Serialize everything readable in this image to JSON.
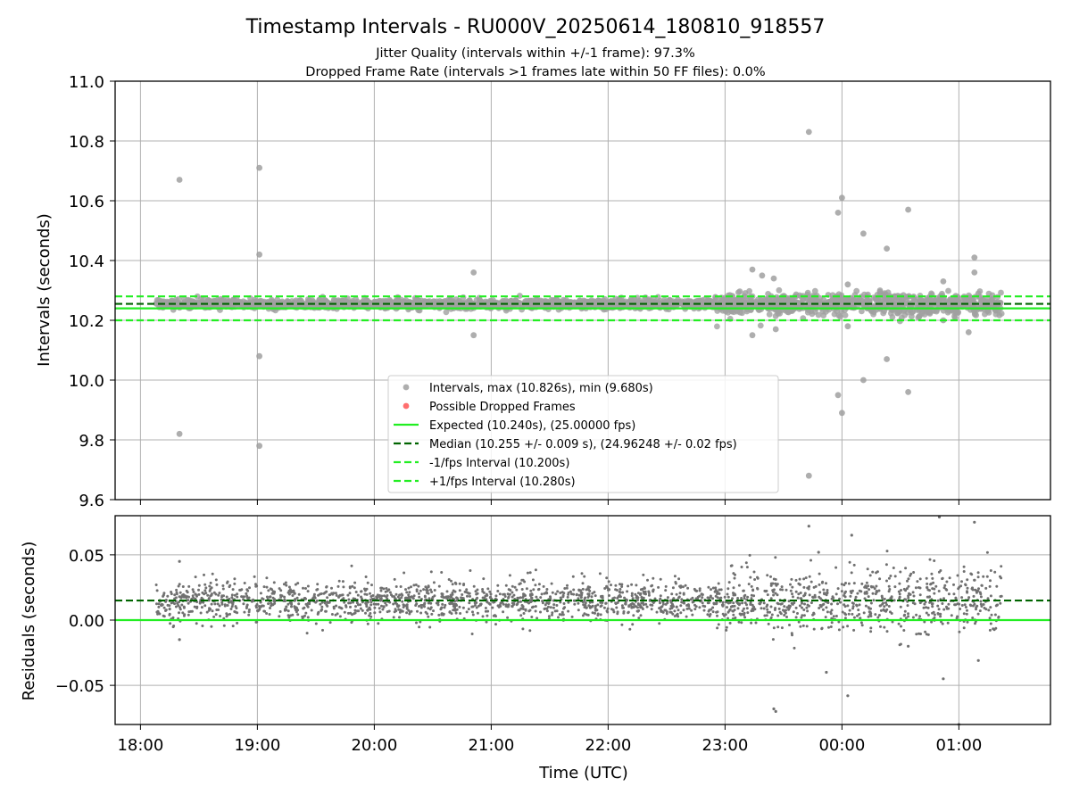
{
  "chart_data": [
    {
      "type": "scatter",
      "title": "Timestamp Intervals - RU000V_20250614_180810_918557",
      "subtitle_lines": [
        "Jitter Quality (intervals within +/-1 frame): 97.3%",
        "Dropped Frame Rate (intervals >1 frames late within 50 FF files): 0.0%"
      ],
      "xlabel": "",
      "ylabel": "Intervals (seconds)",
      "x_range": [
        "2025-06-14T17:47",
        "2025-06-15T01:47"
      ],
      "ylim": [
        9.6,
        11.0
      ],
      "x_ticks": [
        "18:00",
        "19:00",
        "20:00",
        "21:00",
        "22:00",
        "23:00",
        "00:00",
        "01:00"
      ],
      "y_ticks": [
        "9.6",
        "9.8",
        "10.0",
        "10.2",
        "10.4",
        "10.6",
        "10.8",
        "11.0"
      ],
      "grid": true,
      "legend_position": "bottom-center",
      "colors": {
        "points": "#a0a0a0",
        "dropped": "#ff5555",
        "expected": "#22ee22",
        "median": "#006400",
        "bounds": "#22ee22"
      },
      "series": [
        {
          "name": "Intervals, max (10.826s), min (9.680s)",
          "kind": "points",
          "x": [
            "2025-06-14T18:20",
            "2025-06-14T18:20",
            "2025-06-14T19:01",
            "2025-06-14T19:01",
            "2025-06-14T19:01",
            "2025-06-14T19:01",
            "2025-06-14T20:51",
            "2025-06-14T20:51",
            "2025-06-14T23:14",
            "2025-06-14T23:14",
            "2025-06-14T23:19",
            "2025-06-14T23:25",
            "2025-06-14T23:26",
            "2025-06-14T23:43",
            "2025-06-14T23:43",
            "2025-06-14T23:58",
            "2025-06-14T23:58",
            "2025-06-15T00:00",
            "2025-06-15T00:00",
            "2025-06-15T00:03",
            "2025-06-15T00:03",
            "2025-06-15T00:11",
            "2025-06-15T00:11",
            "2025-06-15T00:23",
            "2025-06-15T00:23",
            "2025-06-15T00:34",
            "2025-06-15T00:34",
            "2025-06-15T00:52",
            "2025-06-15T00:52",
            "2025-06-15T01:05",
            "2025-06-15T01:08",
            "2025-06-15T01:08",
            "2025-06-15T01:10"
          ],
          "y": [
            10.67,
            9.82,
            10.71,
            10.42,
            10.08,
            9.78,
            10.36,
            10.15,
            10.37,
            10.15,
            10.35,
            10.34,
            10.17,
            10.83,
            9.68,
            10.56,
            9.95,
            10.61,
            9.89,
            10.32,
            10.18,
            10.49,
            10.0,
            10.44,
            10.07,
            10.57,
            9.96,
            10.33,
            10.2,
            10.16,
            10.41,
            10.36,
            10.29
          ]
        },
        {
          "name": "Possible Dropped Frames",
          "kind": "points",
          "x": [],
          "y": []
        },
        {
          "name": "Expected (10.240s), (25.00000 fps)",
          "kind": "hline",
          "value": 10.24
        },
        {
          "name": "Median (10.255 +/- 0.009 s), (24.96248 +/- 0.02 fps)",
          "kind": "hline",
          "value": 10.255
        },
        {
          "name": "-1/fps Interval (10.200s)",
          "kind": "hline",
          "value": 10.2
        },
        {
          "name": "+1/fps Interval (10.280s)",
          "kind": "hline",
          "value": 10.28
        }
      ],
      "dense_band": {
        "x_range": [
          "2025-06-14T18:08",
          "2025-06-15T01:22"
        ],
        "center": 10.255,
        "spread_early": 0.012,
        "spread_late": 0.03
      }
    },
    {
      "type": "scatter",
      "xlabel": "Time (UTC)",
      "ylabel": "Residuals (seconds)",
      "x_range": [
        "2025-06-14T17:47",
        "2025-06-15T01:47"
      ],
      "ylim": [
        -0.08,
        0.08
      ],
      "x_ticks": [
        "18:00",
        "19:00",
        "20:00",
        "21:00",
        "22:00",
        "23:00",
        "00:00",
        "01:00"
      ],
      "y_ticks": [
        "−0.05",
        "0.00",
        "0.05"
      ],
      "y_tick_values": [
        -0.05,
        0.0,
        0.05
      ],
      "grid": true,
      "colors": {
        "points": "#707070",
        "zero": "#22ee22",
        "median": "#006400"
      },
      "zero_line": 0.0,
      "median_line": 0.015,
      "series": [
        {
          "kind": "points",
          "x": [
            "2025-06-14T18:20",
            "2025-06-14T18:20",
            "2025-06-14T23:25",
            "2025-06-14T23:26",
            "2025-06-14T23:43",
            "2025-06-14T23:48",
            "2025-06-14T23:52",
            "2025-06-15T00:03",
            "2025-06-15T00:05",
            "2025-06-15T00:34",
            "2025-06-15T00:50",
            "2025-06-15T00:52",
            "2025-06-15T01:00",
            "2025-06-15T01:08",
            "2025-06-15T01:10"
          ],
          "y": [
            0.045,
            -0.015,
            -0.068,
            -0.07,
            0.072,
            0.052,
            -0.04,
            -0.058,
            0.065,
            -0.02,
            0.079,
            -0.045,
            -0.08,
            0.075,
            -0.031
          ]
        }
      ],
      "dense_band": {
        "x_range": [
          "2025-06-14T18:08",
          "2025-06-15T01:22"
        ],
        "center": 0.015,
        "spread_early": 0.012,
        "spread_late": 0.02
      }
    }
  ]
}
